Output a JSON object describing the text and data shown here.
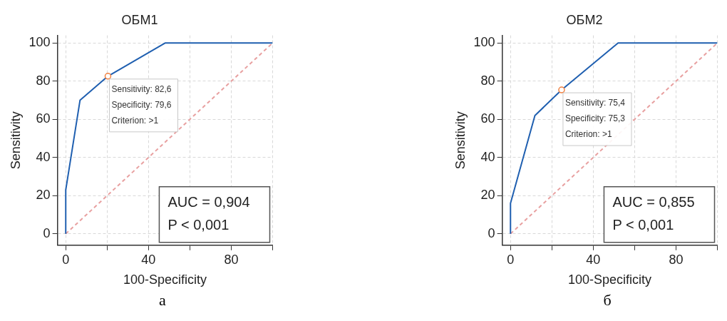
{
  "chart_data": [
    {
      "type": "line",
      "title": "ОБМ1",
      "xlabel": "100-Specificity",
      "ylabel": "Sensitivity",
      "xlim": [
        -4,
        100
      ],
      "xticks": [
        0,
        {
          "value": 20,
          "label": null
        },
        40,
        {
          "value": 60,
          "label": null
        },
        80,
        {
          "value": 100,
          "label": null
        }
      ],
      "ylim": [
        -6,
        104
      ],
      "yticks": [
        0,
        20,
        40,
        60,
        80,
        100
      ],
      "grid": true,
      "series": [
        {
          "type": "line",
          "color": "#1f5fb0",
          "x": [
            0,
            0,
            6.9,
            20.4,
            48,
            100
          ],
          "values": [
            0,
            23,
            70,
            82.6,
            100,
            100
          ],
          "marker": "none",
          "line_style": "solid"
        },
        {
          "type": "line",
          "color": "#e8a0a0",
          "x": [
            0,
            100
          ],
          "values": [
            0,
            100
          ],
          "marker": "none",
          "line_style": "dashed"
        },
        {
          "type": "scatter",
          "color": "#f08040",
          "x": [
            20.4
          ],
          "values": [
            82.6
          ],
          "marker": "circle"
        }
      ],
      "annotations": [
        {
          "text": "Sensitivity: 82,6\nSpecificity: 79,6\nCriterion: >1",
          "x": 20.4,
          "y": 82.6
        },
        "AUC = 0,904\nP < 0,001",
        "а"
      ]
    },
    {
      "type": "line",
      "title": "ОБМ2",
      "xlabel": "100-Specificity",
      "ylabel": "Sensitivity",
      "xlim": [
        -4,
        100
      ],
      "xticks": [
        0,
        {
          "value": 20,
          "label": null
        },
        40,
        {
          "value": 60,
          "label": null
        },
        80,
        {
          "value": 100,
          "label": null
        }
      ],
      "ylim": [
        -6,
        104
      ],
      "yticks": [
        0,
        20,
        40,
        60,
        80,
        100
      ],
      "grid": true,
      "series": [
        {
          "type": "line",
          "color": "#1f5fb0",
          "x": [
            0,
            0,
            11.8,
            24.7,
            52,
            100
          ],
          "values": [
            0,
            16,
            62,
            75.4,
            100,
            100
          ],
          "marker": "none",
          "line_style": "solid"
        },
        {
          "type": "line",
          "color": "#e8a0a0",
          "x": [
            0,
            100
          ],
          "values": [
            0,
            100
          ],
          "marker": "none",
          "line_style": "dashed"
        },
        {
          "type": "scatter",
          "color": "#f08040",
          "x": [
            24.7
          ],
          "values": [
            75.4
          ],
          "marker": "circle"
        }
      ],
      "annotations": [
        {
          "text": "Sensitivity: 75,4\nSpecificity: 75,3\nCriterion: >1",
          "x": 24.7,
          "y": 75.4
        },
        "AUC = 0,855\nP < 0,001",
        "б"
      ]
    }
  ]
}
